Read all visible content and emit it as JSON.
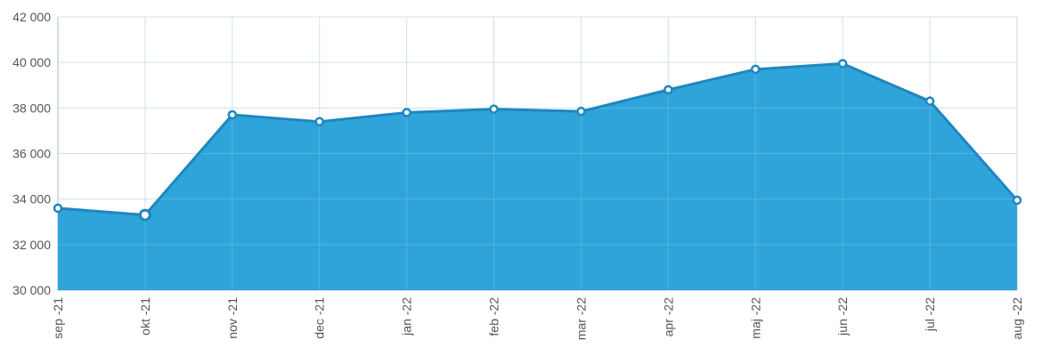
{
  "chart_data": {
    "type": "area",
    "categories": [
      "sep -21",
      "okt -21",
      "nov -21",
      "dec -21",
      "jan -22",
      "feb -22",
      "mar -22",
      "apr -22",
      "maj -22",
      "jun -22",
      "jul -22",
      "aug -22"
    ],
    "series": [
      {
        "values": [
          33600,
          33300,
          37700,
          37400,
          37800,
          37950,
          37850,
          38800,
          39700,
          39950,
          38300,
          33950
        ]
      }
    ],
    "ylim": [
      30000,
      42000
    ],
    "yticks": [
      30000,
      32000,
      34000,
      36000,
      38000,
      40000,
      42000
    ],
    "ytick_labels": [
      "30 000",
      "32 000",
      "34 000",
      "36 000",
      "38 000",
      "40 000",
      "42 000"
    ],
    "grid": true,
    "highlighted_index": 1,
    "colors": {
      "fill": "#2FA4DA",
      "line": "#1F86BE",
      "grid": "#C6DDE8",
      "axis": "#9EC3D4",
      "tick_text": "#555555"
    }
  }
}
